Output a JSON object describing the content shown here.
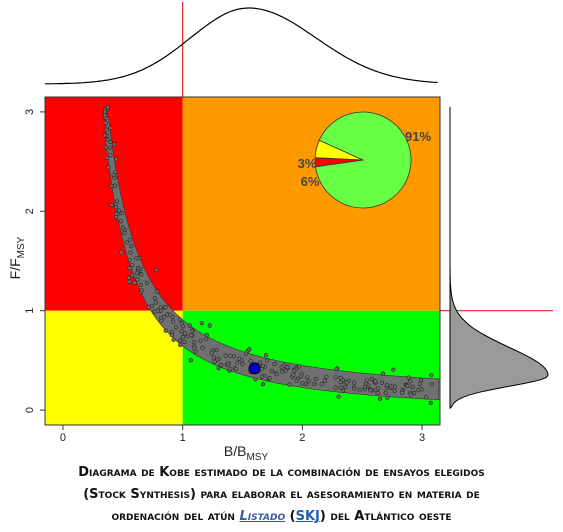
{
  "chart_data": {
    "type": "scatter",
    "xlabel": "B/B",
    "xlabel_sub": "MSY",
    "ylabel": "F/F",
    "ylabel_sub": "MSY",
    "xlim": [
      -0.15,
      3.15
    ],
    "ylim": [
      -0.15,
      3.15
    ],
    "x_ticks": [
      "0",
      "1",
      "2",
      "3"
    ],
    "y_ticks": [
      "0",
      "1",
      "2",
      "3"
    ],
    "reference_lines": {
      "b_over_bmsy": 1,
      "f_over_fmsy": 1
    },
    "quadrant_colors": {
      "overfished_overfishing": "#ff0000",
      "not_overfished_overfishing": "#ff9900",
      "overfished_no_overfishing": "#ffff00",
      "not_overfished_no_overfishing": "#00ff00"
    },
    "cloud_color": "#707070",
    "marker": {
      "x": 1.6,
      "y": 0.42,
      "color": "#0000cc"
    },
    "pie": {
      "slices": [
        {
          "label": "91%",
          "value": 91,
          "color": "#66ff44"
        },
        {
          "label": "3%",
          "value": 3,
          "color": "#ff0000"
        },
        {
          "label": "6%",
          "value": 6,
          "color": "#ffff00"
        }
      ]
    },
    "grid": false
  },
  "caption": {
    "line1": "Diagrama de Kobe estimado de la combinación de ensayos elegidos",
    "line2": "(Stock Synthesis) para elaborar el asesoramiento en materia de",
    "line3_pre": "ordenación del atún ",
    "species": "Listado",
    "paren_open": " (",
    "code": "SKJ",
    "paren_close": ")",
    "line3_post": " del Atlántico oeste"
  }
}
